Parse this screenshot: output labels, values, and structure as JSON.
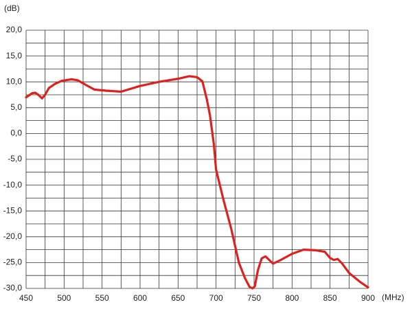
{
  "chart_data": {
    "type": "line",
    "y_axis_label": "(dB)",
    "x_axis_label": "(MHz)",
    "grid": true,
    "xlim": [
      450,
      900
    ],
    "ylim": [
      -30,
      20
    ],
    "xticks": [
      450,
      500,
      550,
      600,
      650,
      700,
      750,
      800,
      850,
      900
    ],
    "x_minor_ticks": [
      475,
      525,
      575,
      625,
      675,
      725,
      775,
      825,
      875
    ],
    "yticks": [
      {
        "value": 20,
        "label": "20,0"
      },
      {
        "value": 15,
        "label": "15,0"
      },
      {
        "value": 10,
        "label": "10,0"
      },
      {
        "value": 5,
        "label": "5,0"
      },
      {
        "value": 0,
        "label": "0,0"
      },
      {
        "value": -5,
        "label": "-5,0"
      },
      {
        "value": -10,
        "label": "-10,0"
      },
      {
        "value": -15,
        "label": "-15,0"
      },
      {
        "value": -20,
        "label": "-20,0"
      },
      {
        "value": -25,
        "label": "-25,0"
      },
      {
        "value": -30,
        "label": "-30,0"
      }
    ],
    "y_minor_ticks": [
      17.5,
      12.5,
      7.5,
      2.5,
      -2.5,
      -7.5,
      -12.5,
      -17.5,
      -22.5,
      -27.5
    ],
    "series": [
      {
        "color": "#e0201c",
        "x": [
          450,
          458,
          462,
          466,
          471,
          475,
          480,
          488,
          497,
          510,
          518,
          530,
          540,
          555,
          575,
          600,
          625,
          650,
          665,
          675,
          682,
          688,
          692,
          697,
          700,
          710,
          720,
          730,
          738,
          744,
          748,
          751,
          755,
          760,
          765,
          770,
          775,
          785,
          800,
          815,
          830,
          843,
          850,
          855,
          860,
          866,
          875,
          890,
          900
        ],
        "values": [
          7.0,
          7.8,
          7.9,
          7.5,
          6.8,
          7.5,
          8.8,
          9.6,
          10.2,
          10.5,
          10.3,
          9.3,
          8.5,
          8.3,
          8.1,
          9.2,
          10.0,
          10.6,
          11.1,
          10.9,
          10.1,
          6.5,
          3.5,
          -2,
          -7,
          -13,
          -18.5,
          -25,
          -28,
          -29.7,
          -30,
          -29.6,
          -26.5,
          -24.2,
          -23.8,
          -24.5,
          -25.2,
          -24.5,
          -23.3,
          -22.5,
          -22.6,
          -22.9,
          -24.1,
          -24.5,
          -24.3,
          -25.2,
          -27.0,
          -28.8,
          -29.8
        ]
      }
    ]
  }
}
